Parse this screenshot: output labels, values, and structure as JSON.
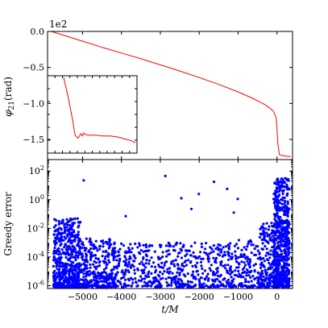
{
  "chart_data": [
    {
      "type": "line",
      "title": "",
      "ylabel_math": "φ",
      "ylabel_sub": "21",
      "ylabel_unit": "(rad)",
      "offset_label": "1e2",
      "xlim": [
        -5900,
        400
      ],
      "ylim": [
        -1.78,
        0.0
      ],
      "yticks": [
        0.0,
        -0.5,
        -1.0,
        -1.5
      ],
      "ytick_labels": [
        "0.0",
        "−0.5",
        "−1.0",
        "−1.5"
      ],
      "grid": false,
      "series": [
        {
          "color": "#ff0000",
          "x": [
            -5800,
            -5500,
            -5000,
            -4500,
            -4000,
            -3500,
            -3000,
            -2500,
            -2000,
            -1500,
            -1000,
            -600,
            -300,
            -100,
            -20,
            0,
            20,
            60,
            100,
            200,
            350
          ],
          "y": [
            0.0,
            -0.05,
            -0.135,
            -0.22,
            -0.3,
            -0.38,
            -0.465,
            -0.55,
            -0.64,
            -0.735,
            -0.84,
            -0.935,
            -1.02,
            -1.1,
            -1.2,
            -1.35,
            -1.55,
            -1.71,
            -1.72,
            -1.73,
            -1.74
          ]
        }
      ],
      "inset": {
        "x": [
          0.0,
          0.06,
          0.12,
          0.16,
          0.2,
          0.24,
          0.26,
          0.28,
          0.3,
          0.35,
          0.45,
          0.55,
          0.65,
          0.72,
          0.78,
          0.85,
          0.93,
          1.0
        ],
        "y": [
          1.0,
          0.75,
          0.45,
          0.22,
          0.18,
          0.24,
          0.21,
          0.25,
          0.23,
          0.22,
          0.22,
          0.21,
          0.21,
          0.2,
          0.19,
          0.17,
          0.15,
          0.12
        ]
      }
    },
    {
      "type": "scatter",
      "title": "",
      "xlabel_math": "t/M",
      "ylabel": "Greedy error",
      "yscale": "log",
      "xlim": [
        -5900,
        400
      ],
      "ylim_exp": [
        -6.2,
        2.8
      ],
      "xticks": [
        -5000,
        -4000,
        -3000,
        -2000,
        -1000,
        0
      ],
      "xtick_labels": [
        "−5000",
        "−4000",
        "−3000",
        "−2000",
        "−1000",
        "0"
      ],
      "yticks_exp": [
        2,
        0,
        -2,
        -4,
        -6
      ],
      "ytick_base": "10",
      "ytick_exponents": [
        "2",
        "0",
        "-2",
        "-4",
        "-6"
      ],
      "grid": false,
      "marker_color": "#0000ff",
      "outliers": {
        "x": [
          -4970,
          -2870,
          -2200,
          -1620,
          -1280,
          -2460,
          -1010,
          -3890,
          -2010,
          -1110,
          80,
          35
        ],
        "exp": [
          1.35,
          1.65,
          -0.65,
          1.25,
          0.75,
          0.1,
          0.05,
          -1.15,
          0.4,
          -0.9,
          0.7,
          1.1
        ]
      },
      "bands": [
        {
          "x": [
            -5750,
            -5050
          ],
          "exp_low": -6.1,
          "exp_high": -1.3,
          "count": 520
        },
        {
          "x": [
            -5050,
            -4150
          ],
          "exp_low": -6.1,
          "exp_high": -2.7,
          "count": 330
        },
        {
          "x": [
            -4150,
            -1100
          ],
          "exp_low": -6.1,
          "exp_high": -3.0,
          "count": 540
        },
        {
          "x": [
            -1100,
            -450
          ],
          "exp_low": -6.1,
          "exp_high": -2.8,
          "count": 130
        },
        {
          "x": [
            -450,
            -90
          ],
          "exp_low": -6.1,
          "exp_high": -1.6,
          "count": 160
        },
        {
          "x": [
            -90,
            320
          ],
          "exp_low": -6.1,
          "exp_high": 1.5,
          "count": 620
        }
      ]
    }
  ]
}
